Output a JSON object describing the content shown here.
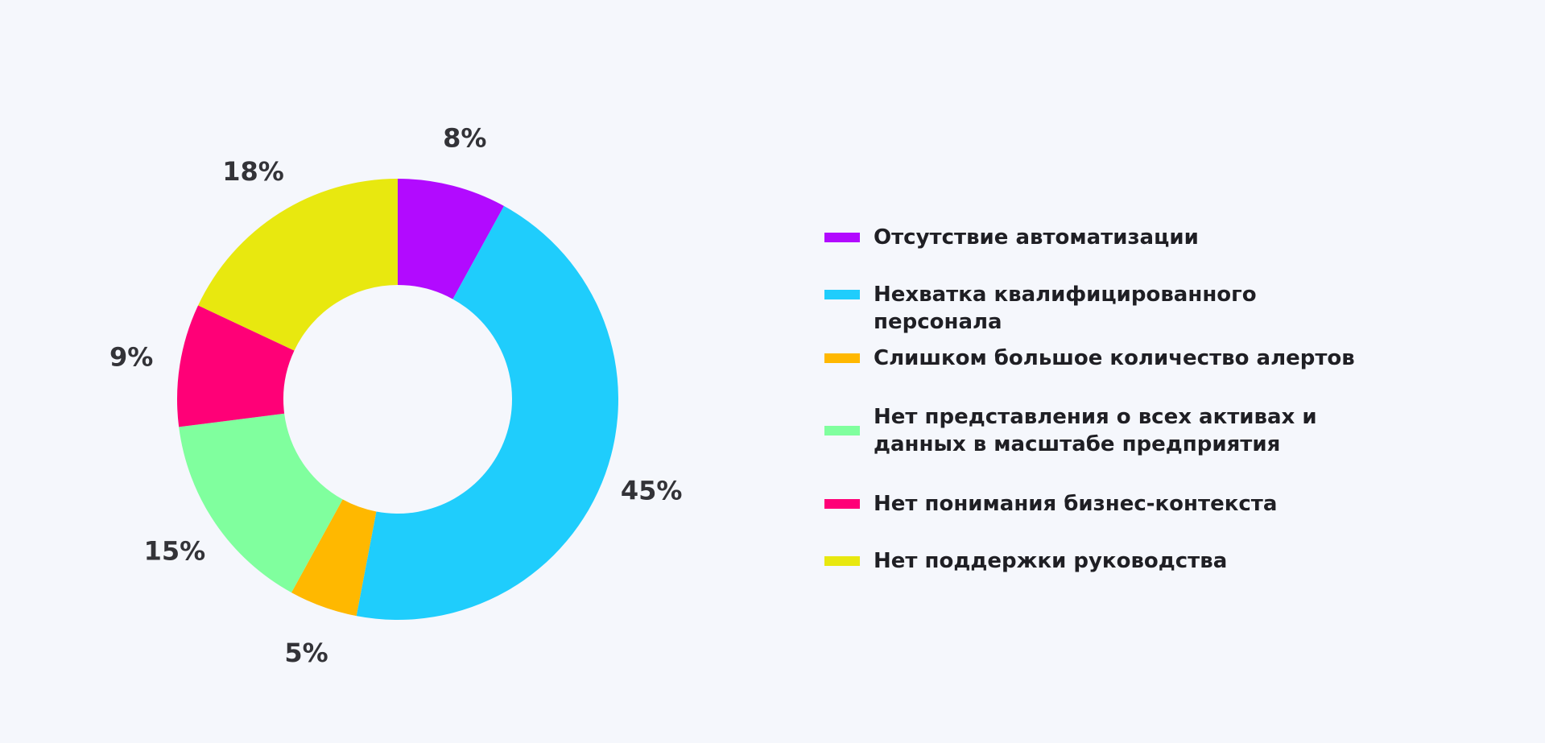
{
  "chart_data": {
    "type": "pie",
    "donut": true,
    "slices": [
      {
        "label": "Отсутствие автоматизации",
        "value": 8,
        "display": "8%",
        "color": "#b20aff"
      },
      {
        "label": "Нехватка квалифицированного персонала",
        "value": 45,
        "display": "45%",
        "color": "#1fcdfc"
      },
      {
        "label": "Слишком большое количество алертов",
        "value": 5,
        "display": "5%",
        "color": "#ffb800"
      },
      {
        "label": "Нет представления о всех активах и данных в масштабе предприятия",
        "value": 15,
        "display": "15%",
        "color": "#80ff9e"
      },
      {
        "label": "Нет понимания бизнес-контекста",
        "value": 9,
        "display": "9%",
        "color": "#ff0077"
      },
      {
        "label": "Нет поддержки руководства",
        "value": 18,
        "display": "18%",
        "color": "#e8e80f"
      }
    ],
    "legend_placement": "right"
  },
  "colors": {
    "background": "#f5f7fc",
    "label_text": "#333338",
    "legend_text": "#1f1f24"
  }
}
